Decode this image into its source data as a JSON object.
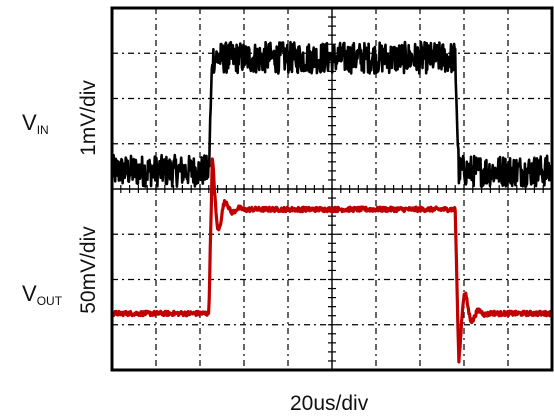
{
  "chart_data": {
    "type": "line",
    "title": "",
    "xlabel": "20us/div",
    "channel_labels": [
      {
        "name": "IN",
        "scale": "1mV/div"
      },
      {
        "name": "OUT",
        "scale": "50mV/div"
      }
    ],
    "channel_prefix": "V",
    "grid": true,
    "x_divisions": 10,
    "y_divisions": 8,
    "xlim": [
      0,
      10
    ],
    "ylim": [
      0,
      8
    ],
    "series": [
      {
        "color": "#000000",
        "low_level_div": 4.4,
        "high_level_div": 6.9,
        "noise_div": 0.35,
        "rise_at_div": 2.2,
        "fall_at_div": 7.8
      },
      {
        "color": "#c00000",
        "low_level_div": 1.25,
        "high_level_div": 3.55,
        "noise_div": 0.05,
        "rise_at_div": 2.2,
        "fall_at_div": 7.8,
        "peak_div": 4.65,
        "undershoot_div": 0.2
      }
    ]
  }
}
